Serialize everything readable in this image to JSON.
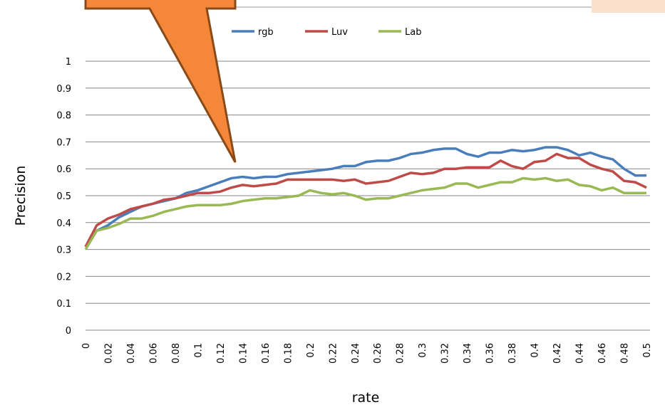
{
  "chart_data": {
    "type": "line",
    "x_label": "rate",
    "y_label": "Precision",
    "x": [
      0,
      0.01,
      0.02,
      0.03,
      0.04,
      0.05,
      0.06,
      0.07,
      0.08,
      0.09,
      0.1,
      0.11,
      0.12,
      0.13,
      0.14,
      0.15,
      0.16,
      0.17,
      0.18,
      0.19,
      0.2,
      0.21,
      0.22,
      0.23,
      0.24,
      0.25,
      0.26,
      0.27,
      0.28,
      0.29,
      0.3,
      0.31,
      0.32,
      0.33,
      0.34,
      0.35,
      0.36,
      0.37,
      0.38,
      0.39,
      0.4,
      0.41,
      0.42,
      0.43,
      0.44,
      0.45,
      0.46,
      0.47,
      0.48,
      0.49,
      0.5
    ],
    "series": [
      {
        "name": "rgb",
        "color": "#4a7ebb",
        "values": [
          0.31,
          0.37,
          0.39,
          0.42,
          0.44,
          0.46,
          0.47,
          0.48,
          0.49,
          0.51,
          0.52,
          0.535,
          0.55,
          0.565,
          0.57,
          0.565,
          0.57,
          0.57,
          0.58,
          0.585,
          0.59,
          0.595,
          0.6,
          0.61,
          0.61,
          0.625,
          0.63,
          0.63,
          0.64,
          0.655,
          0.66,
          0.67,
          0.675,
          0.675,
          0.655,
          0.645,
          0.66,
          0.66,
          0.67,
          0.665,
          0.67,
          0.68,
          0.68,
          0.67,
          0.65,
          0.66,
          0.645,
          0.635,
          0.6,
          0.575,
          0.575
        ]
      },
      {
        "name": "Luv",
        "color": "#be4b48",
        "values": [
          0.31,
          0.39,
          0.415,
          0.43,
          0.45,
          0.46,
          0.47,
          0.485,
          0.49,
          0.5,
          0.51,
          0.51,
          0.515,
          0.53,
          0.54,
          0.535,
          0.54,
          0.545,
          0.56,
          0.56,
          0.56,
          0.56,
          0.56,
          0.555,
          0.56,
          0.545,
          0.55,
          0.555,
          0.57,
          0.585,
          0.58,
          0.585,
          0.6,
          0.6,
          0.605,
          0.605,
          0.605,
          0.63,
          0.61,
          0.6,
          0.625,
          0.63,
          0.655,
          0.64,
          0.64,
          0.615,
          0.6,
          0.59,
          0.555,
          0.55,
          0.53
        ]
      },
      {
        "name": "Lab",
        "color": "#98b954",
        "values": [
          0.3,
          0.37,
          0.38,
          0.395,
          0.415,
          0.415,
          0.425,
          0.44,
          0.45,
          0.46,
          0.465,
          0.465,
          0.465,
          0.47,
          0.48,
          0.485,
          0.49,
          0.49,
          0.495,
          0.5,
          0.52,
          0.51,
          0.505,
          0.51,
          0.5,
          0.485,
          0.49,
          0.49,
          0.5,
          0.51,
          0.52,
          0.525,
          0.53,
          0.545,
          0.545,
          0.53,
          0.54,
          0.55,
          0.55,
          0.565,
          0.56,
          0.565,
          0.555,
          0.56,
          0.54,
          0.535,
          0.52,
          0.53,
          0.51,
          0.51,
          0.51
        ]
      }
    ],
    "xlim": [
      0,
      0.5
    ],
    "xticks": [
      0,
      0.02,
      0.04,
      0.06,
      0.08,
      0.1,
      0.12,
      0.14,
      0.16,
      0.18,
      0.2,
      0.22,
      0.24,
      0.26,
      0.28,
      0.3,
      0.32,
      0.34,
      0.36,
      0.38,
      0.4,
      0.42,
      0.44,
      0.46,
      0.48,
      0.5
    ],
    "ylim": [
      0,
      1
    ],
    "yticks": [
      0,
      0.1,
      0.2,
      0.3,
      0.4,
      0.5,
      0.6,
      0.7,
      0.8,
      0.9,
      1
    ],
    "grid": true,
    "legend": "top"
  }
}
